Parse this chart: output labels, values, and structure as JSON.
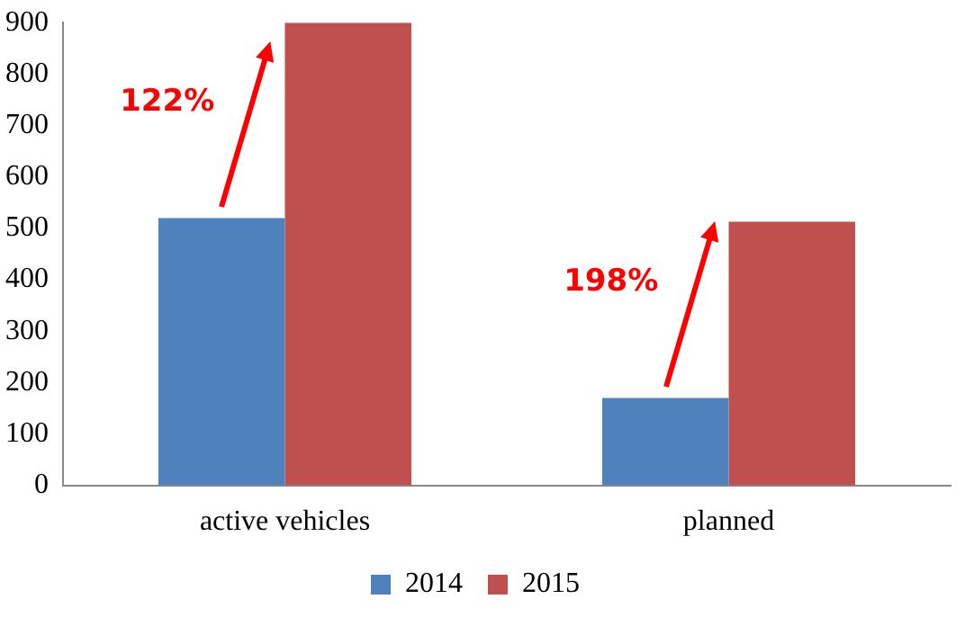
{
  "chart_data": {
    "type": "bar",
    "categories": [
      "active vehicles",
      "planned"
    ],
    "series": [
      {
        "name": "2014",
        "color": "#4f81bd",
        "values": [
          520,
          170
        ]
      },
      {
        "name": "2015",
        "color": "#c0504d",
        "values": [
          900,
          513
        ]
      }
    ],
    "ylim": [
      0,
      900
    ],
    "yticks": [
      0,
      100,
      200,
      300,
      400,
      500,
      600,
      700,
      800,
      900
    ],
    "grid": false,
    "legend": "bottom",
    "annotations": [
      "122%",
      "198%"
    ]
  }
}
